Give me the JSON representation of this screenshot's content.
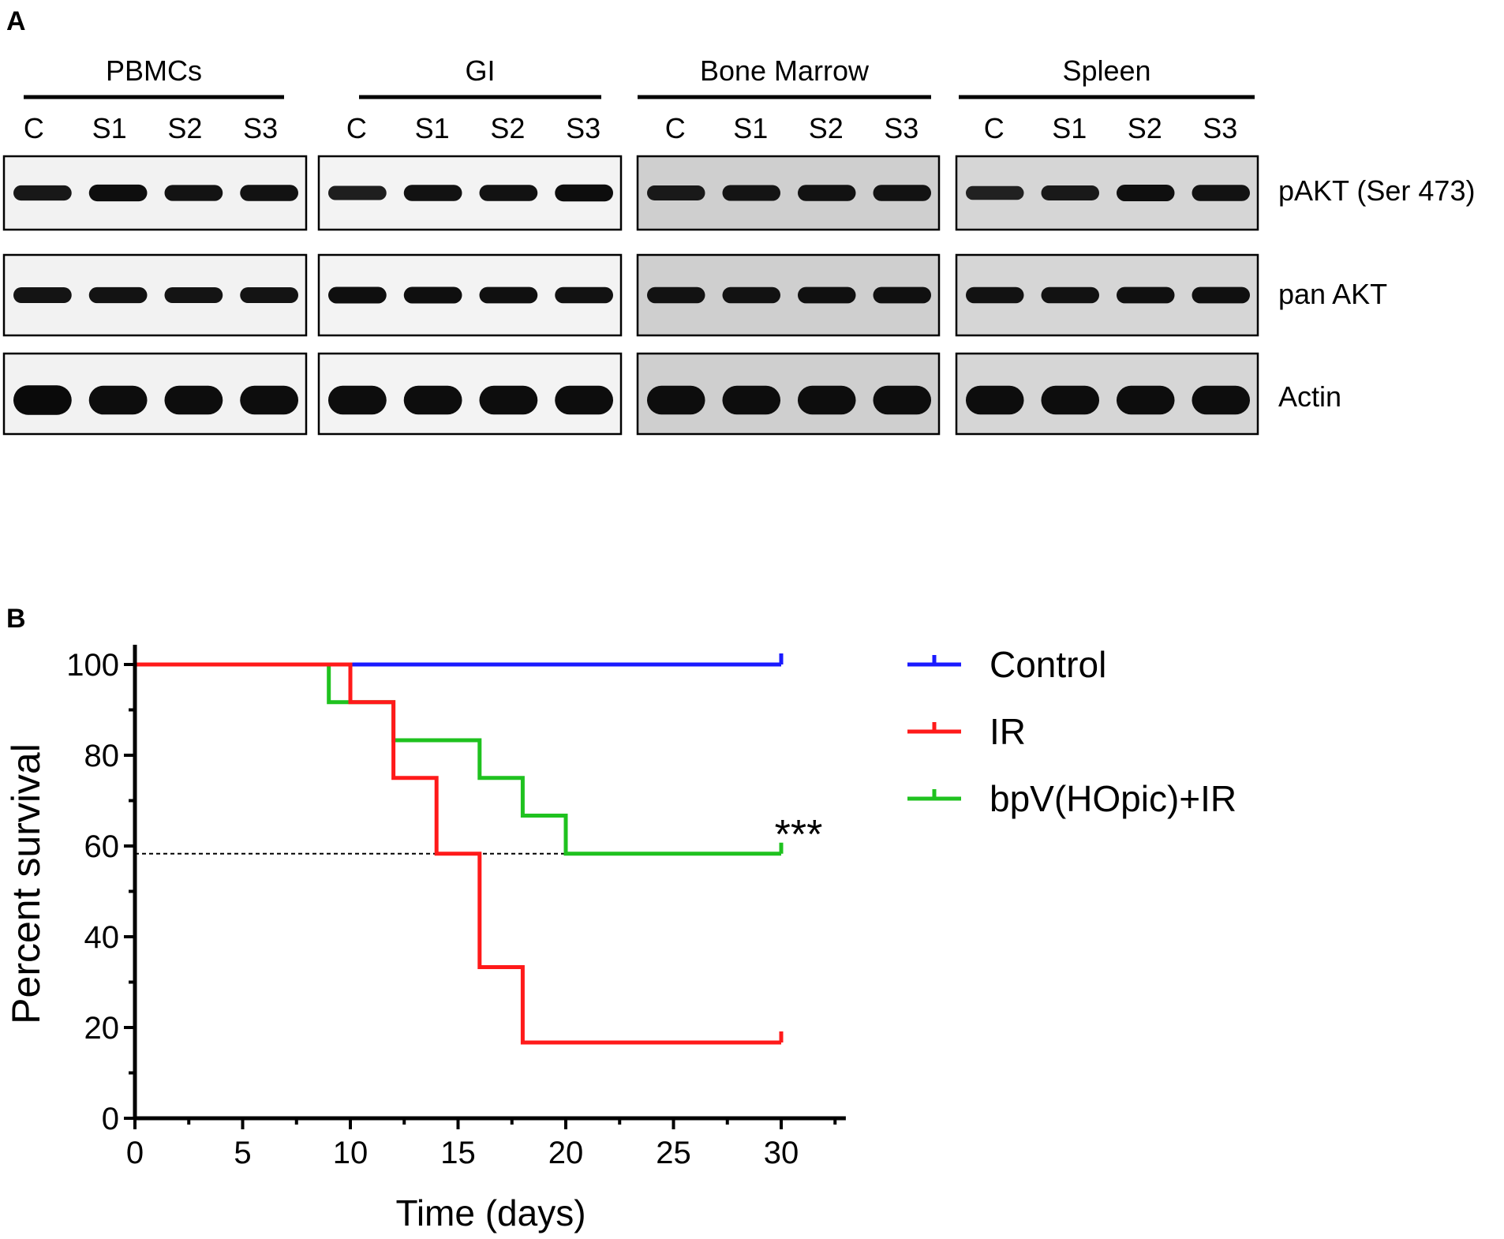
{
  "panel_a": {
    "label": "A",
    "tissues": [
      {
        "name": "PBMCs",
        "lanes": [
          "C",
          "S1",
          "S2",
          "S3"
        ],
        "intensities": {
          "pakt": [
            0.72,
            0.92,
            0.82,
            0.85
          ],
          "panakt": [
            0.8,
            0.82,
            0.8,
            0.8
          ],
          "actin": [
            1.0,
            0.95,
            0.95,
            0.95
          ]
        }
      },
      {
        "name": "GI",
        "lanes": [
          "C",
          "S1",
          "S2",
          "S3"
        ],
        "intensities": {
          "pakt": [
            0.6,
            0.85,
            0.85,
            0.95
          ],
          "panakt": [
            0.9,
            0.9,
            0.88,
            0.85
          ],
          "actin": [
            0.95,
            0.95,
            0.95,
            0.95
          ]
        }
      },
      {
        "name": "Bone Marrow",
        "lanes": [
          "C",
          "S1",
          "S2",
          "S3"
        ],
        "intensities": {
          "pakt": [
            0.7,
            0.8,
            0.85,
            0.85
          ],
          "panakt": [
            0.85,
            0.85,
            0.88,
            0.88
          ],
          "actin": [
            0.95,
            0.95,
            0.95,
            0.95
          ]
        }
      },
      {
        "name": "Spleen",
        "lanes": [
          "C",
          "S1",
          "S2",
          "S3"
        ],
        "intensities": {
          "pakt": [
            0.55,
            0.7,
            0.9,
            0.85
          ],
          "panakt": [
            0.85,
            0.85,
            0.88,
            0.88
          ],
          "actin": [
            0.95,
            0.95,
            0.95,
            0.95
          ]
        }
      }
    ],
    "row_labels": [
      "pAKT (Ser 473)",
      "pan AKT",
      "Actin"
    ],
    "blot_backgrounds": [
      "#f2f2f2",
      "#f3f3f3",
      "#cfcfcf",
      "#d6d6d6"
    ]
  },
  "panel_b": {
    "label": "B",
    "significance": "***"
  },
  "chart_data": {
    "type": "line",
    "xlabel": "Time (days)",
    "ylabel": "Percent survival",
    "xlim": [
      0,
      33
    ],
    "ylim": [
      0,
      100
    ],
    "xticks": [
      0,
      5,
      10,
      15,
      20,
      25,
      30
    ],
    "yticks": [
      0,
      20,
      40,
      60,
      80,
      100
    ],
    "legend_position": "right",
    "reference_line": {
      "y": 58.3,
      "x": [
        0,
        20
      ],
      "style": "dashed"
    },
    "series": [
      {
        "name": "Control",
        "color": "#1a1aff",
        "x": [
          0,
          30
        ],
        "y": [
          100,
          100
        ]
      },
      {
        "name": "IR",
        "color": "#ff1a1a",
        "x": [
          0,
          10,
          12,
          14,
          16,
          18,
          30
        ],
        "y": [
          100,
          91.7,
          75,
          58.3,
          33.3,
          16.7,
          16.7
        ]
      },
      {
        "name": "bpV(HOpic)+IR",
        "color": "#1fc21f",
        "x": [
          0,
          9,
          12,
          16,
          18,
          20,
          30
        ],
        "y": [
          100,
          91.7,
          83.3,
          75,
          66.7,
          58.3,
          58.3
        ]
      }
    ]
  }
}
